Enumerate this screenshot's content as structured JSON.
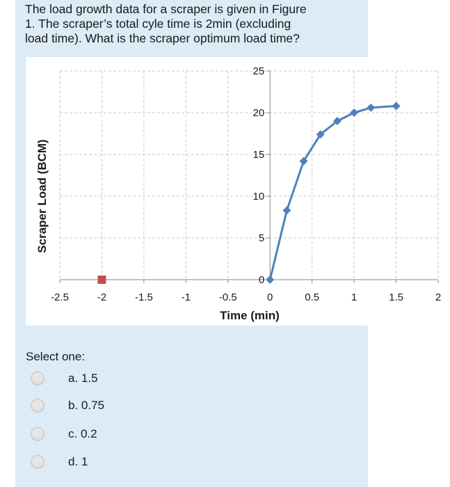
{
  "question": {
    "lines": [
      "The load growth data for a scraper is given in Figure",
      "1. The scraper’s total cyle time is 2min (excluding",
      "load time). What is the scraper optimum load time?"
    ]
  },
  "chart_data": {
    "type": "scatter",
    "title": "",
    "xlabel": "Time (min)",
    "ylabel": "Scraper Load (BCM)",
    "xlim": [
      -2.5,
      2
    ],
    "ylim": [
      0,
      25
    ],
    "grid": true,
    "legend": "none",
    "x_ticks": [
      "-2.5",
      "-2",
      "-1.5",
      "-1",
      "-0.5",
      "0",
      "0.5",
      "1",
      "1.5",
      "2"
    ],
    "y_ticks": [
      "0",
      "5",
      "10",
      "15",
      "20",
      "25"
    ],
    "series": [
      {
        "style": "line-diamond",
        "color": "#4f81bd",
        "points": [
          [
            0,
            0
          ],
          [
            0.2,
            8.3
          ],
          [
            0.4,
            14.2
          ],
          [
            0.6,
            17.4
          ],
          [
            0.8,
            19.0
          ],
          [
            1.0,
            20.0
          ],
          [
            1.2,
            20.6
          ],
          [
            1.5,
            20.8
          ]
        ]
      },
      {
        "style": "square",
        "color": "#c0504d",
        "points": [
          [
            -2,
            0
          ]
        ]
      }
    ]
  },
  "form": {
    "select_label": "Select one:",
    "options": [
      "a. 1.5",
      "b. 0.75",
      "c. 0.2",
      "d. 1"
    ]
  }
}
